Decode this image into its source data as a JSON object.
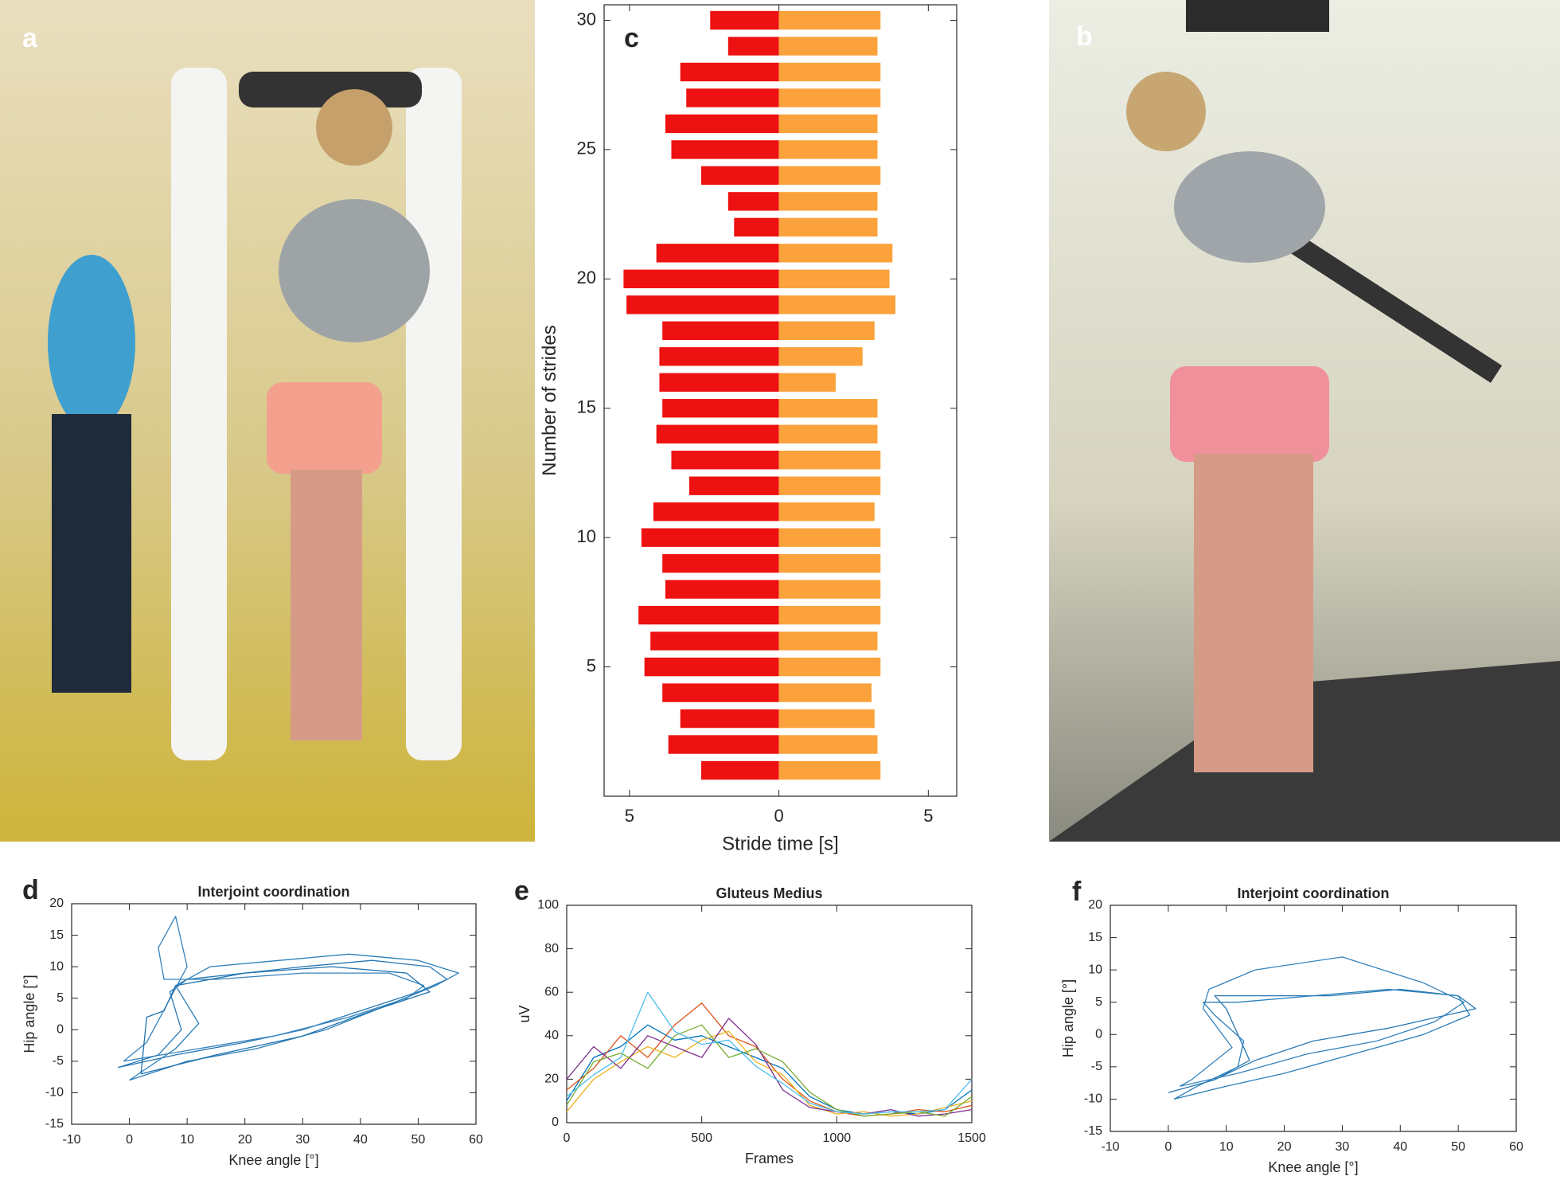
{
  "photos": [
    {
      "label": "a"
    },
    {
      "label": "b"
    }
  ],
  "chart_data": [
    {
      "type": "bar",
      "orientation": "horizontal",
      "label": "c",
      "x_label": "Stride time [s]",
      "y_label": "Number of strides",
      "y": [
        1,
        2,
        3,
        4,
        5,
        6,
        7,
        8,
        9,
        10,
        11,
        12,
        13,
        14,
        15,
        16,
        17,
        18,
        19,
        20,
        21,
        22,
        23,
        24,
        25,
        26,
        27,
        28,
        29,
        30
      ],
      "series": [
        {
          "color": "#ee1111",
          "values": [
            -2.6,
            -3.7,
            -3.3,
            -3.9,
            -4.5,
            -4.3,
            -4.7,
            -3.8,
            -3.9,
            -4.6,
            -4.2,
            -3.0,
            -3.6,
            -4.1,
            -3.9,
            -4.0,
            -4.0,
            -3.9,
            -5.1,
            -5.2,
            -4.1,
            -1.5,
            -1.7,
            -2.6,
            -3.6,
            -3.8,
            -3.1,
            -3.3,
            -1.7,
            -2.3
          ]
        },
        {
          "color": "#fba23c",
          "values": [
            3.4,
            3.3,
            3.2,
            3.1,
            3.4,
            3.3,
            3.4,
            3.4,
            3.4,
            3.4,
            3.2,
            3.4,
            3.4,
            3.3,
            3.3,
            1.9,
            2.8,
            3.2,
            3.9,
            3.7,
            3.8,
            3.3,
            3.3,
            3.4,
            3.3,
            3.3,
            3.4,
            3.4,
            3.3,
            3.4
          ]
        }
      ],
      "xlim": [
        -5.85,
        5.95
      ],
      "xticks": [
        {
          "value": -5,
          "label": "5"
        },
        0,
        5
      ],
      "ylim": [
        0,
        30.6
      ],
      "yticks": [
        5,
        10,
        15,
        20,
        25,
        30
      ]
    },
    {
      "type": "line",
      "label": "d",
      "title": "Interjoint coordination",
      "x_label": "Knee angle [°]",
      "y_label": "Hip angle [°]",
      "series": [
        {
          "color": "#2878b5",
          "x": [
            -2,
            8,
            20,
            30,
            40,
            50,
            55,
            52,
            42,
            30,
            20,
            10,
            7,
            9,
            5,
            -2
          ],
          "values": [
            -6,
            -4,
            -2,
            0,
            3,
            6,
            8,
            10,
            11,
            10,
            9,
            8,
            6,
            0,
            -4,
            -6
          ]
        },
        {
          "color": "#2a7fba",
          "x": [
            0,
            10,
            22,
            34,
            45,
            53,
            57,
            50,
            38,
            26,
            14,
            8,
            12,
            8,
            0
          ],
          "values": [
            -8,
            -5,
            -3,
            0,
            4,
            7,
            9,
            11,
            12,
            11,
            10,
            7,
            1,
            -3,
            -8
          ]
        },
        {
          "color": "#3583be",
          "x": [
            -1,
            12,
            25,
            38,
            48,
            51,
            45,
            30,
            15,
            6,
            5,
            8,
            10,
            3,
            -1
          ],
          "values": [
            -5,
            -3,
            -1,
            2,
            5,
            7,
            9,
            9,
            8,
            8,
            13,
            18,
            10,
            -2,
            -5
          ]
        },
        {
          "color": "#1f72ae",
          "x": [
            2,
            15,
            30,
            42,
            52,
            48,
            35,
            20,
            8,
            6,
            3,
            2
          ],
          "values": [
            -7,
            -4,
            -1,
            3,
            6,
            9,
            10,
            9,
            7,
            3,
            2,
            -7
          ]
        }
      ],
      "xlim": [
        -10,
        60
      ],
      "xticks": [
        -10,
        0,
        10,
        20,
        30,
        40,
        50,
        60
      ],
      "ylim": [
        -15,
        20
      ],
      "yticks": [
        -15,
        -10,
        -5,
        0,
        5,
        10,
        15,
        20
      ]
    },
    {
      "type": "line",
      "label": "e",
      "title": "Gluteus Medius",
      "x_label": "Frames",
      "y_label": "uV",
      "series": [
        {
          "color": "#0072bd",
          "x": [
            0,
            100,
            200,
            300,
            400,
            500,
            600,
            700,
            800,
            900,
            1000,
            1100,
            1200,
            1300,
            1400,
            1500
          ],
          "values": [
            10,
            30,
            35,
            45,
            38,
            40,
            35,
            30,
            25,
            12,
            6,
            4,
            5,
            4,
            6,
            15
          ]
        },
        {
          "color": "#d95319",
          "x": [
            0,
            100,
            200,
            300,
            400,
            500,
            600,
            700,
            800,
            900,
            1000,
            1100,
            1200,
            1300,
            1400,
            1500
          ],
          "values": [
            15,
            25,
            40,
            30,
            45,
            55,
            40,
            35,
            20,
            10,
            5,
            3,
            4,
            6,
            5,
            8
          ]
        },
        {
          "color": "#edb120",
          "x": [
            0,
            100,
            200,
            300,
            400,
            500,
            600,
            700,
            800,
            900,
            1000,
            1100,
            1200,
            1300,
            1400,
            1500
          ],
          "values": [
            5,
            20,
            28,
            35,
            30,
            38,
            42,
            28,
            22,
            8,
            4,
            5,
            3,
            4,
            7,
            10
          ]
        },
        {
          "color": "#7e2f8e",
          "x": [
            0,
            100,
            200,
            300,
            400,
            500,
            600,
            700,
            800,
            900,
            1000,
            1100,
            1200,
            1300,
            1400,
            1500
          ],
          "values": [
            20,
            35,
            25,
            40,
            35,
            30,
            48,
            36,
            15,
            7,
            5,
            4,
            6,
            3,
            4,
            6
          ]
        },
        {
          "color": "#77ac30",
          "x": [
            0,
            100,
            200,
            300,
            400,
            500,
            600,
            700,
            800,
            900,
            1000,
            1100,
            1200,
            1300,
            1400,
            1500
          ],
          "values": [
            8,
            28,
            32,
            25,
            40,
            45,
            30,
            34,
            28,
            14,
            6,
            3,
            4,
            5,
            3,
            12
          ]
        },
        {
          "color": "#4dbeee",
          "x": [
            0,
            100,
            200,
            300,
            400,
            500,
            600,
            700,
            800,
            900,
            1000,
            1100,
            1200,
            1300,
            1400,
            1500
          ],
          "values": [
            12,
            22,
            30,
            60,
            42,
            36,
            38,
            26,
            18,
            9,
            5,
            4,
            5,
            5,
            6,
            20
          ]
        }
      ],
      "xlim": [
        0,
        1500
      ],
      "xticks": [
        0,
        500,
        1000,
        1500
      ],
      "ylim": [
        0,
        100
      ],
      "yticks": [
        0,
        20,
        40,
        60,
        80,
        100
      ]
    },
    {
      "type": "line",
      "label": "f",
      "title": "Interjoint coordination",
      "x_label": "Knee angle [°]",
      "y_label": "Hip angle [°]",
      "series": [
        {
          "color": "#2878b5",
          "x": [
            0,
            8,
            15,
            25,
            38,
            48,
            53,
            50,
            40,
            28,
            16,
            8,
            10,
            14,
            8,
            0
          ],
          "values": [
            -9,
            -7,
            -4,
            -1,
            1,
            3,
            4,
            6,
            7,
            6,
            6,
            6,
            4,
            -4,
            -7,
            -9
          ]
        },
        {
          "color": "#2a7fba",
          "x": [
            1,
            10,
            20,
            32,
            44,
            52,
            50,
            38,
            25,
            12,
            6,
            8,
            13,
            12,
            5,
            1
          ],
          "values": [
            -10,
            -8,
            -6,
            -3,
            0,
            3,
            6,
            7,
            6,
            5,
            5,
            3,
            -1,
            -5,
            -8,
            -10
          ]
        },
        {
          "color": "#3583be",
          "x": [
            2,
            12,
            24,
            36,
            46,
            51,
            44,
            30,
            15,
            7,
            6,
            11,
            4,
            2
          ],
          "values": [
            -8,
            -6,
            -3,
            -1,
            2,
            5,
            8,
            12,
            10,
            7,
            4,
            -2,
            -7,
            -8
          ]
        }
      ],
      "xlim": [
        -10,
        60
      ],
      "xticks": [
        -10,
        0,
        10,
        20,
        30,
        40,
        50,
        60
      ],
      "ylim": [
        -15,
        20
      ],
      "yticks": [
        -15,
        -10,
        -5,
        0,
        5,
        10,
        15,
        20
      ]
    }
  ]
}
